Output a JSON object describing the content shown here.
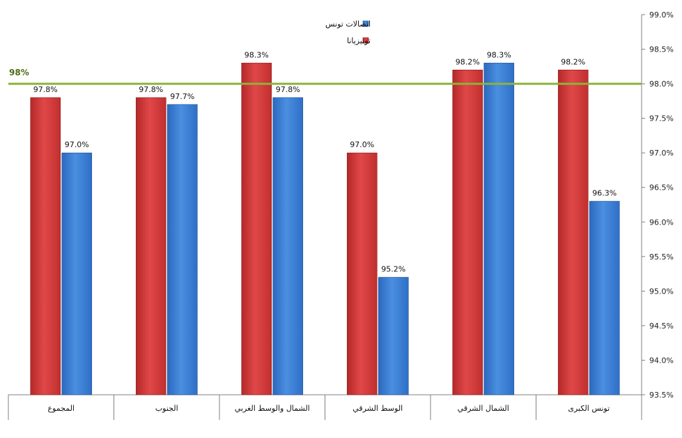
{
  "chart_data": {
    "type": "bar",
    "categories": [
      "المجموع",
      "الجنوب",
      "الشمال والوسط الغربي",
      "الوسط الشرقي",
      "الشمال الشرقي",
      "تونس الكبرى"
    ],
    "series": [
      {
        "name": "تونيزيانا",
        "color": "#d93b3b",
        "values": [
          97.8,
          97.8,
          98.3,
          97.0,
          98.2,
          98.2
        ],
        "labels": [
          "97.8%",
          "97.8%",
          "98.3%",
          "97.0%",
          "98.2%",
          "98.2%"
        ]
      },
      {
        "name": "اتصالات تونس",
        "color": "#3a7fd5",
        "values": [
          97.0,
          97.7,
          97.8,
          95.2,
          98.3,
          96.3
        ],
        "labels": [
          "97.0%",
          "97.7%",
          "97.8%",
          "95.2%",
          "98.3%",
          "96.3%"
        ]
      }
    ],
    "ylim": [
      93.5,
      99.0
    ],
    "yticks": [
      "99.0%",
      "98.5%",
      "98.0%",
      "97.5%",
      "97.0%",
      "96.5%",
      "96.0%",
      "95.5%",
      "95.0%",
      "94.5%",
      "94.0%",
      "93.5%"
    ],
    "ytick_values": [
      99.0,
      98.5,
      98.0,
      97.5,
      97.0,
      96.5,
      96.0,
      95.5,
      95.0,
      94.5,
      94.0,
      93.5
    ],
    "y_axis_side": "right",
    "reference_line": {
      "value": 98.0,
      "label": "98%",
      "color": "#8cb33b",
      "label_color": "#4f6b12"
    },
    "legend": {
      "position": "top-center",
      "order": [
        "اتصالات تونس",
        "تونيزيانا"
      ]
    },
    "grid": false,
    "title": "",
    "xlabel": "",
    "ylabel": ""
  }
}
